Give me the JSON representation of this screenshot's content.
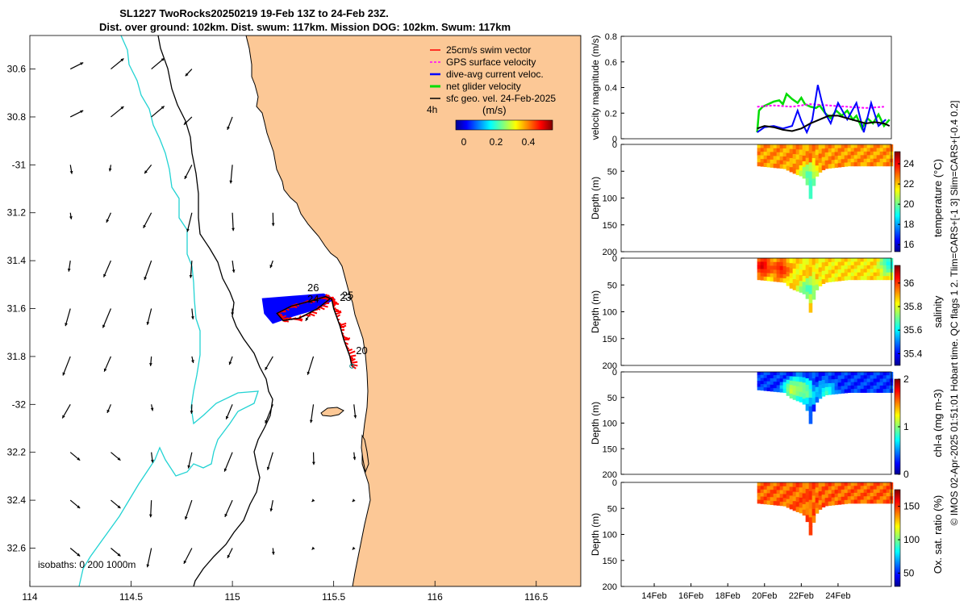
{
  "title": {
    "line1": "SL1227 TwoRocks20250219 19-Feb 13Z to 24-Feb 23Z.",
    "line2": "Dist. over ground: 102km. Dist. swum: 117km. Mission DOG: 102km. Swum: 117km"
  },
  "map": {
    "xlim": [
      114,
      116.72
    ],
    "ylim": [
      -32.76,
      -30.46
    ],
    "xticks": [
      {
        "v": 114,
        "label": "114"
      },
      {
        "v": 114.5,
        "label": "114.5"
      },
      {
        "v": 115,
        "label": "115"
      },
      {
        "v": 115.5,
        "label": "115.5"
      },
      {
        "v": 116,
        "label": "116"
      },
      {
        "v": 116.5,
        "label": "116.5"
      }
    ],
    "yticks": [
      {
        "v": -30.6,
        "label": "30.6"
      },
      {
        "v": -30.8,
        "label": "30.8"
      },
      {
        "v": -31.0,
        "label": "-31"
      },
      {
        "v": -31.2,
        "label": "31.2"
      },
      {
        "v": -31.4,
        "label": "31.4"
      },
      {
        "v": -31.6,
        "label": "31.6"
      },
      {
        "v": -31.8,
        "label": "31.8"
      },
      {
        "v": -32.0,
        "label": "-32"
      },
      {
        "v": -32.2,
        "label": "32.2"
      },
      {
        "v": -32.4,
        "label": "32.4"
      },
      {
        "v": -32.6,
        "label": "32.6"
      }
    ],
    "legend": [
      {
        "label": "25cm/s swim vector",
        "color": "#ff0000"
      },
      {
        "label": "GPS surface velocity",
        "color": "#ff00ff"
      },
      {
        "label": "dive-avg current veloc.",
        "color": "#0000ff"
      },
      {
        "label": "net glider velocity",
        "color": "#00dd00"
      },
      {
        "label": "sfc geo. vel. 24-Feb-2025",
        "color": "#000000"
      }
    ],
    "time_label": "4h",
    "colorbar": {
      "label": "(m/s)",
      "ticks": [
        "0",
        "0.2",
        "0.4"
      ],
      "range": [
        -0.05,
        0.55
      ]
    },
    "isobaths_label": "isobaths: 0   200  1000m",
    "day_labels": [
      {
        "text": "26",
        "lon": 115.37,
        "lat": -31.527
      },
      {
        "text": "24",
        "lon": 115.37,
        "lat": -31.575
      },
      {
        "text": "25",
        "lon": 115.54,
        "lat": -31.56
      },
      {
        "text": "23",
        "lon": 115.53,
        "lat": -31.568
      },
      {
        "text": "20",
        "lon": 115.61,
        "lat": -31.79
      }
    ],
    "track": [
      [
        115.59,
        -31.84
      ],
      [
        115.58,
        -31.8
      ],
      [
        115.55,
        -31.73
      ],
      [
        115.53,
        -31.67
      ],
      [
        115.5,
        -31.6
      ],
      [
        115.49,
        -31.56
      ],
      [
        115.46,
        -31.55
      ],
      [
        115.38,
        -31.57
      ],
      [
        115.29,
        -31.59
      ],
      [
        115.22,
        -31.62
      ],
      [
        115.25,
        -31.65
      ],
      [
        115.33,
        -31.64
      ],
      [
        115.42,
        -31.6
      ],
      [
        115.48,
        -31.56
      ]
    ],
    "vectors": {
      "lons": [
        114.2,
        114.4,
        114.6,
        114.8,
        115.0,
        115.2,
        115.4,
        115.6
      ],
      "lats": [
        -30.6,
        -30.8,
        -31.0,
        -31.2,
        -31.4,
        -31.6,
        -31.8,
        -32.0,
        -32.2,
        -32.4,
        -32.6
      ],
      "units": "m/s east/north",
      "note": "surface geostrophic velocity field"
    }
  },
  "chart_data": [
    {
      "type": "line",
      "name": "velocity",
      "title": "",
      "xlabel": "",
      "ylabel": "velocity magnitude (m/s)",
      "xlim": [
        12.2,
        26.9
      ],
      "ylim": [
        0,
        0.8
      ],
      "yticks": [
        "0",
        "0.2",
        "0.4",
        "0.6",
        "0.8"
      ],
      "series": [
        {
          "name": "net glider velocity",
          "color": "#00dd00",
          "x": [
            19.6,
            19.7,
            19.9,
            20.2,
            20.5,
            20.8,
            21.0,
            21.2,
            21.5,
            21.8,
            22.0,
            22.2,
            22.5,
            22.8,
            23.0,
            23.3,
            23.6,
            23.9,
            24.2,
            24.5,
            24.8,
            25.0,
            25.3,
            25.6,
            25.9,
            26.2,
            26.5,
            26.8
          ],
          "y": [
            0.05,
            0.22,
            0.25,
            0.27,
            0.29,
            0.3,
            0.27,
            0.35,
            0.31,
            0.28,
            0.32,
            0.27,
            0.25,
            0.24,
            0.26,
            0.2,
            0.16,
            0.22,
            0.18,
            0.22,
            0.15,
            0.18,
            0.08,
            0.16,
            0.12,
            0.19,
            0.1,
            0.15
          ]
        },
        {
          "name": "GPS surface velocity",
          "color": "#ff00ff",
          "x": [
            19.6,
            20.5,
            21.5,
            22.5,
            23.5,
            24.5,
            25.5,
            26.5
          ],
          "y": [
            0.25,
            0.26,
            0.25,
            0.27,
            0.26,
            0.25,
            0.24,
            0.25
          ]
        },
        {
          "name": "dive-avg current veloc.",
          "color": "#0000ff",
          "x": [
            19.6,
            20.0,
            20.5,
            21.0,
            21.5,
            21.8,
            22.0,
            22.3,
            22.6,
            22.9,
            23.1,
            23.3,
            23.6,
            24.0,
            24.5,
            25.0,
            25.4,
            25.8,
            26.2,
            26.6
          ],
          "y": [
            0.05,
            0.09,
            0.1,
            0.08,
            0.1,
            0.22,
            0.14,
            0.05,
            0.15,
            0.42,
            0.3,
            0.2,
            0.12,
            0.28,
            0.15,
            0.28,
            0.05,
            0.28,
            0.1,
            0.15
          ]
        },
        {
          "name": "sfc geo. vel.",
          "color": "#000000",
          "x": [
            19.6,
            20.0,
            20.5,
            21.0,
            21.5,
            22.0,
            22.5,
            23.0,
            23.5,
            24.0,
            24.5,
            25.0,
            25.5,
            26.0,
            26.5,
            26.8
          ],
          "y": [
            0.08,
            0.1,
            0.09,
            0.07,
            0.06,
            0.08,
            0.12,
            0.15,
            0.18,
            0.18,
            0.16,
            0.14,
            0.12,
            0.13,
            0.12,
            0.1
          ]
        }
      ]
    },
    {
      "type": "heatmap",
      "name": "temperature",
      "ylabel": "Depth (m)",
      "colorbar_label": "temperature (°C)",
      "clim": [
        15.3,
        25.2
      ],
      "cticks": [
        "16",
        "18",
        "20",
        "22",
        "24"
      ],
      "yticks": [
        "0",
        "50",
        "100",
        "150",
        "200"
      ],
      "ylim": [
        0,
        200
      ],
      "xlim": [
        12.2,
        26.9
      ],
      "surface_value": 22.5,
      "time_start": 19.6,
      "time_end": 26.9,
      "bottom_profile": [
        [
          19.6,
          40
        ],
        [
          21.0,
          45
        ],
        [
          21.3,
          50
        ],
        [
          21.6,
          55
        ],
        [
          22.0,
          60
        ],
        [
          22.2,
          70
        ],
        [
          22.4,
          102
        ],
        [
          22.55,
          80
        ],
        [
          22.8,
          55
        ],
        [
          23.2,
          45
        ],
        [
          24.5,
          40
        ],
        [
          26.9,
          40
        ]
      ],
      "anomalies": [
        {
          "x": 22.3,
          "d": 55,
          "v": 19.5
        },
        {
          "x": 22.45,
          "d": 85,
          "v": 18.5
        }
      ]
    },
    {
      "type": "heatmap",
      "name": "salinity",
      "ylabel": "Depth (m)",
      "colorbar_label": "salinity",
      "clim": [
        35.3,
        36.15
      ],
      "cticks": [
        "35.4",
        "35.6",
        "35.8",
        "36"
      ],
      "yticks": [
        "0",
        "50",
        "100",
        "150",
        "200"
      ],
      "ylim": [
        0,
        200
      ],
      "xlim": [
        12.2,
        26.9
      ],
      "surface_value": 35.85,
      "time_start": 19.6,
      "time_end": 26.9,
      "bottom_profile": [
        [
          19.6,
          40
        ],
        [
          21.0,
          45
        ],
        [
          21.3,
          55
        ],
        [
          21.6,
          60
        ],
        [
          22.0,
          65
        ],
        [
          22.2,
          70
        ],
        [
          22.4,
          102
        ],
        [
          22.55,
          80
        ],
        [
          22.8,
          55
        ],
        [
          23.2,
          45
        ],
        [
          24.5,
          40
        ],
        [
          26.9,
          40
        ]
      ],
      "anomalies": [
        {
          "x": 19.8,
          "d": 15,
          "v": 36.1
        },
        {
          "x": 20.8,
          "d": 20,
          "v": 36.05
        },
        {
          "x": 22.3,
          "d": 60,
          "v": 35.65
        },
        {
          "x": 26.7,
          "d": 10,
          "v": 35.6
        }
      ]
    },
    {
      "type": "heatmap",
      "name": "chl-a",
      "ylabel": "Depth (m)",
      "colorbar_label": "chl-a (mg m-3)",
      "clim": [
        0,
        2
      ],
      "cticks": [
        "0",
        "1",
        "2"
      ],
      "yticks": [
        "0",
        "50",
        "100",
        "150",
        "200"
      ],
      "ylim": [
        0,
        200
      ],
      "xlim": [
        12.2,
        26.9
      ],
      "surface_value": 0.35,
      "time_start": 19.6,
      "time_end": 26.9,
      "bottom_profile": [
        [
          19.6,
          35
        ],
        [
          21.0,
          40
        ],
        [
          21.3,
          50
        ],
        [
          21.6,
          55
        ],
        [
          22.0,
          60
        ],
        [
          22.2,
          70
        ],
        [
          22.4,
          102
        ],
        [
          22.55,
          80
        ],
        [
          22.8,
          55
        ],
        [
          23.2,
          45
        ],
        [
          24.5,
          40
        ],
        [
          26.9,
          40
        ]
      ],
      "anomalies": [
        {
          "x": 21.4,
          "d": 35,
          "v": 1.3
        },
        {
          "x": 21.9,
          "d": 30,
          "v": 1.1
        },
        {
          "x": 22.2,
          "d": 45,
          "v": 1.0
        },
        {
          "x": 23.3,
          "d": 40,
          "v": 0.9
        }
      ]
    },
    {
      "type": "heatmap",
      "name": "oxygen saturation",
      "ylabel": "Depth (m)",
      "colorbar_label": "Ox. sat. ratio (%)",
      "clim": [
        30,
        175
      ],
      "cticks": [
        "50",
        "100",
        "150"
      ],
      "yticks": [
        "0",
        "50",
        "100",
        "150",
        "200"
      ],
      "ylim": [
        0,
        200
      ],
      "xlim": [
        12.2,
        26.9
      ],
      "xticks": [
        "14Feb",
        "16Feb",
        "18Feb",
        "20Feb",
        "22Feb",
        "24Feb"
      ],
      "surface_value": 143,
      "time_start": 19.6,
      "time_end": 26.9,
      "bottom_profile": [
        [
          19.6,
          40
        ],
        [
          21.0,
          45
        ],
        [
          21.3,
          50
        ],
        [
          21.6,
          55
        ],
        [
          22.0,
          60
        ],
        [
          22.2,
          70
        ],
        [
          22.4,
          102
        ],
        [
          22.55,
          80
        ],
        [
          22.8,
          55
        ],
        [
          23.2,
          45
        ],
        [
          24.5,
          40
        ],
        [
          26.9,
          40
        ]
      ],
      "anomalies": []
    }
  ],
  "footer_note": "© IMOS 02-Apr-2025 01:51:01 Hobart time. QC flags 1  2. Tlim=CARS+[-1 3] Slim=CARS+[-0.4 0.2]"
}
